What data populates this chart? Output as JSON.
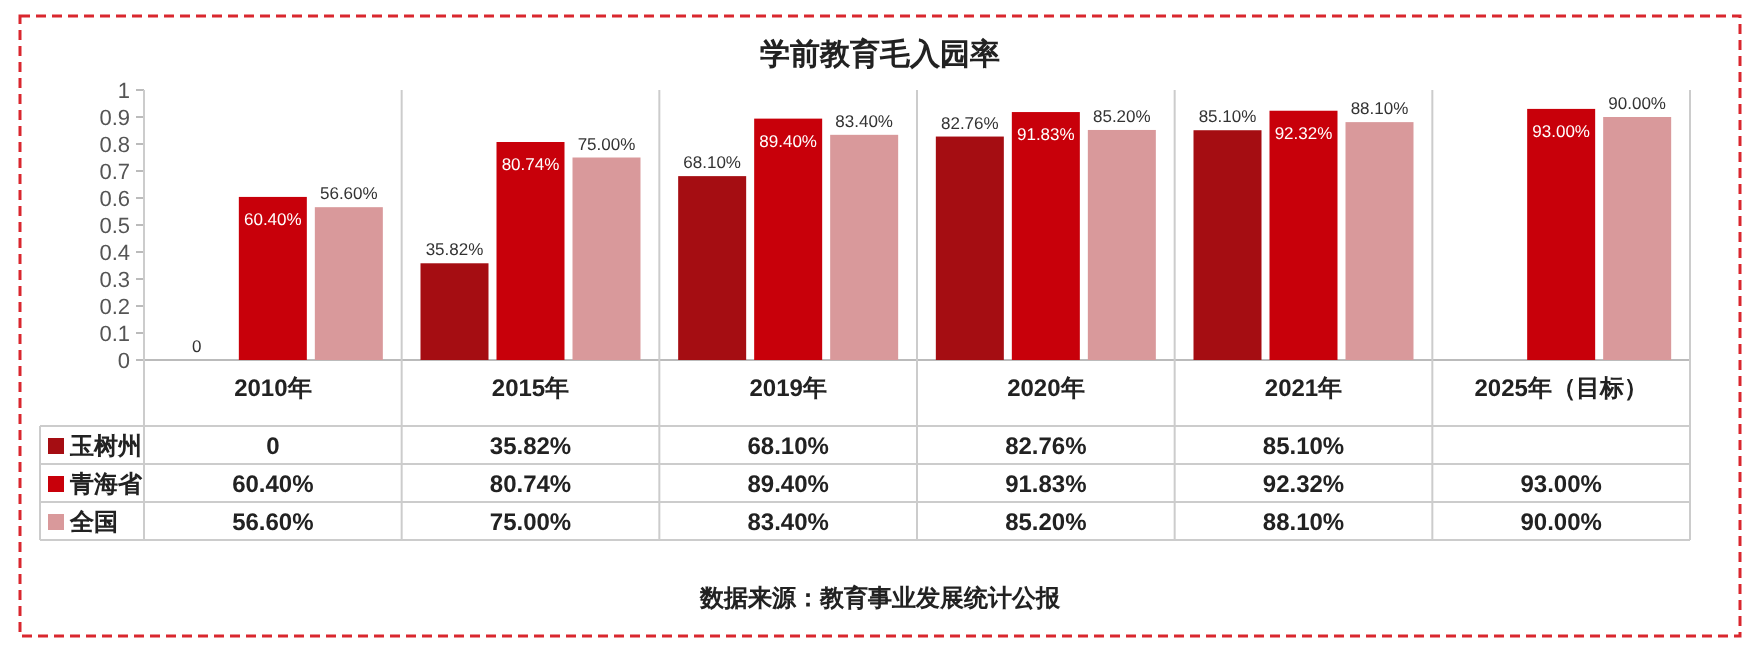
{
  "chart_data": {
    "type": "bar",
    "title": "学前教育毛入园率",
    "categories": [
      "2010年",
      "2015年",
      "2019年",
      "2020年",
      "2021年",
      "2025年（目标）"
    ],
    "ylim": [
      0,
      1
    ],
    "yticks": [
      0,
      0.1,
      0.2,
      0.3,
      0.4,
      0.5,
      0.6,
      0.7,
      0.8,
      0.9,
      1
    ],
    "grid": false,
    "legend": "bottom left",
    "series": [
      {
        "name": "玉树州",
        "color": "#a50d12",
        "values": [
          0,
          0.3582,
          0.681,
          0.8276,
          0.851,
          null
        ],
        "value_labels": [
          "0",
          "35.82%",
          "68.10%",
          "82.76%",
          "85.10%",
          null
        ]
      },
      {
        "name": "青海省",
        "color": "#c8000a",
        "values": [
          0.604,
          0.8074,
          0.894,
          0.9183,
          0.9232,
          0.93
        ],
        "value_labels": [
          "60.40%",
          "80.74%",
          "89.40%",
          "91.83%",
          "92.32%",
          "93.00%"
        ]
      },
      {
        "name": "全国",
        "color": "#d9999b",
        "values": [
          0.566,
          0.75,
          0.834,
          0.852,
          0.881,
          0.9
        ],
        "value_labels": [
          "56.60%",
          "75.00%",
          "83.40%",
          "85.20%",
          "88.10%",
          "90.00%"
        ]
      }
    ],
    "annotations": [
      "数据来源：教育事业发展统计公报"
    ]
  }
}
